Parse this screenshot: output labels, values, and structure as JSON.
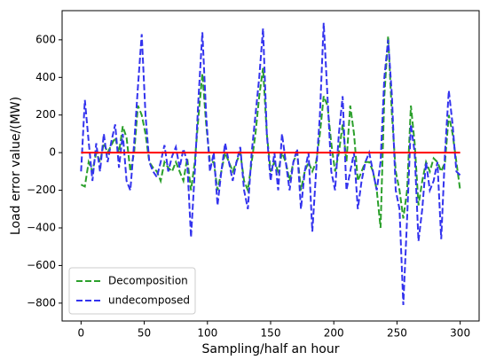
{
  "chart_data": {
    "type": "line",
    "xlabel": "Sampling/half an hour",
    "ylabel": "Load error value/(MW)",
    "x": [
      0,
      3,
      6,
      9,
      12,
      15,
      18,
      21,
      24,
      27,
      30,
      33,
      36,
      39,
      42,
      45,
      48,
      51,
      54,
      57,
      60,
      63,
      66,
      69,
      72,
      75,
      78,
      81,
      84,
      87,
      90,
      93,
      96,
      99,
      102,
      105,
      108,
      111,
      114,
      117,
      120,
      123,
      126,
      129,
      132,
      135,
      138,
      141,
      144,
      147,
      150,
      153,
      156,
      159,
      162,
      165,
      168,
      171,
      174,
      177,
      180,
      183,
      186,
      189,
      192,
      195,
      198,
      201,
      204,
      207,
      210,
      213,
      216,
      219,
      222,
      225,
      228,
      231,
      234,
      237,
      240,
      243,
      246,
      249,
      252,
      255,
      258,
      261,
      264,
      267,
      270,
      273,
      276,
      279,
      282,
      285,
      288,
      291,
      294,
      297,
      300
    ],
    "series": [
      {
        "name": "Decomposition",
        "color": "#2ca02c",
        "values": [
          -170,
          -180,
          -50,
          -100,
          0,
          -50,
          50,
          0,
          40,
          80,
          0,
          140,
          80,
          -100,
          0,
          250,
          200,
          100,
          -50,
          -80,
          -100,
          -150,
          -50,
          -80,
          -100,
          -50,
          -100,
          -150,
          -30,
          -200,
          -50,
          200,
          420,
          150,
          -50,
          -50,
          -200,
          -100,
          0,
          -50,
          -100,
          -50,
          0,
          -150,
          -200,
          -50,
          100,
          300,
          450,
          100,
          -100,
          -50,
          -100,
          0,
          -50,
          -150,
          -50,
          0,
          -200,
          -100,
          -50,
          -100,
          -50,
          100,
          300,
          250,
          50,
          -100,
          0,
          150,
          -50,
          250,
          100,
          -150,
          -100,
          -50,
          -50,
          -100,
          -200,
          -400,
          300,
          620,
          200,
          -100,
          -200,
          -350,
          -200,
          250,
          50,
          -280,
          -150,
          -50,
          -100,
          -30,
          -50,
          -100,
          -50,
          200,
          100,
          -50,
          -200
        ]
      },
      {
        "name": "undecomposed",
        "color": "#3333ee",
        "values": [
          -100,
          280,
          60,
          -150,
          50,
          -100,
          100,
          -50,
          60,
          150,
          -80,
          100,
          -150,
          -200,
          50,
          350,
          630,
          200,
          -50,
          -100,
          -130,
          -50,
          40,
          -100,
          -20,
          30,
          -80,
          20,
          -50,
          -450,
          -100,
          300,
          640,
          200,
          -100,
          0,
          -280,
          -100,
          50,
          -50,
          -150,
          -50,
          30,
          -200,
          -300,
          0,
          200,
          400,
          660,
          100,
          -150,
          0,
          -200,
          100,
          -50,
          -200,
          -50,
          20,
          -300,
          -100,
          0,
          -420,
          -100,
          200,
          690,
          300,
          -100,
          -200,
          100,
          300,
          -200,
          -100,
          0,
          -300,
          -150,
          -50,
          0,
          -100,
          -200,
          -50,
          400,
          600,
          300,
          -200,
          -300,
          -810,
          -350,
          150,
          0,
          -470,
          -300,
          -50,
          -200,
          -150,
          -50,
          -460,
          0,
          330,
          150,
          -100,
          -120
        ]
      }
    ],
    "hline": {
      "value": 0,
      "xrange": [
        0,
        300
      ],
      "color": "#ff0000"
    },
    "xlim": [
      -15,
      315
    ],
    "ylim": [
      -895,
      755
    ],
    "xticks": [
      0,
      50,
      100,
      150,
      200,
      250,
      300
    ],
    "yticks": [
      {
        "value": -800,
        "label": "−800"
      },
      {
        "value": -600,
        "label": "−600"
      },
      {
        "value": -400,
        "label": "−400"
      },
      {
        "value": -200,
        "label": "−200"
      },
      0,
      200,
      400,
      600
    ],
    "legend": "lower left"
  }
}
